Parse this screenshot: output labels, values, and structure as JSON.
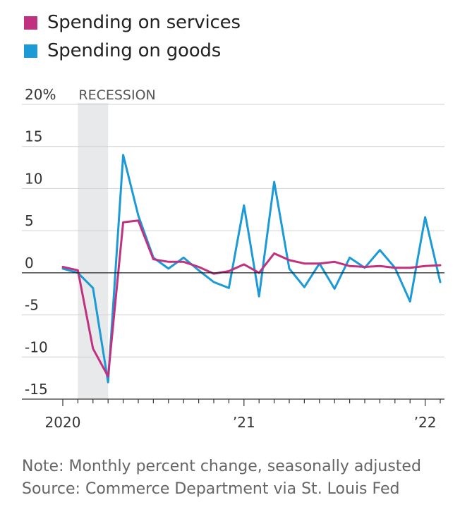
{
  "colors": {
    "services": "#c0317f",
    "goods": "#1b9ad6"
  },
  "legend": [
    {
      "label": "Spending on services",
      "color": "#c0317f"
    },
    {
      "label": "Spending on goods",
      "color": "#1b9ad6"
    }
  ],
  "notes": {
    "note": "Note: Monthly percent change, seasonally adjusted",
    "source": "Source: Commerce Department via St. Louis Fed"
  },
  "chart_data": {
    "type": "line",
    "title": "",
    "xlabel": "",
    "ylabel": "",
    "x": [
      "2020-01",
      "2020-02",
      "2020-03",
      "2020-04",
      "2020-05",
      "2020-06",
      "2020-07",
      "2020-08",
      "2020-09",
      "2020-10",
      "2020-11",
      "2020-12",
      "2021-01",
      "2021-02",
      "2021-03",
      "2021-04",
      "2021-05",
      "2021-06",
      "2021-07",
      "2021-08",
      "2021-09",
      "2021-10",
      "2021-11",
      "2021-12",
      "2022-01",
      "2022-02"
    ],
    "ylim": [
      -15,
      20
    ],
    "y_ticks": [
      20,
      15,
      10,
      5,
      0,
      -5,
      -10,
      -15
    ],
    "y_tick_labels": [
      "20%",
      "15",
      "10",
      "5",
      "0",
      "-5",
      "-10",
      "-15"
    ],
    "x_tick_labels": [
      {
        "x": "2020-01",
        "label": "2020"
      },
      {
        "x": "2021-01",
        "label": "’21"
      },
      {
        "x": "2022-01",
        "label": "’22"
      }
    ],
    "shaded_region": {
      "start": "2020-02",
      "end": "2020-04",
      "label": "RECESSION"
    },
    "grid": true,
    "legend_placement": "top-left",
    "series": [
      {
        "name": "Spending on services",
        "color": "#c0317f",
        "values": [
          0.7,
          0.3,
          -9.0,
          -12.3,
          6.0,
          6.2,
          1.6,
          1.3,
          1.3,
          0.7,
          -0.1,
          0.2,
          1.0,
          0.0,
          2.3,
          1.5,
          1.1,
          1.1,
          1.3,
          0.8,
          0.7,
          0.8,
          0.6,
          0.6,
          0.8,
          0.9
        ]
      },
      {
        "name": "Spending on goods",
        "color": "#1b9ad6",
        "values": [
          0.5,
          0.0,
          -1.8,
          -13.0,
          14.0,
          6.8,
          1.8,
          0.5,
          1.8,
          0.3,
          -1.1,
          -1.8,
          8.0,
          -2.8,
          10.8,
          0.5,
          -1.7,
          1.1,
          -1.9,
          1.8,
          0.6,
          2.7,
          0.6,
          -3.4,
          6.6,
          -1.1
        ]
      }
    ]
  }
}
